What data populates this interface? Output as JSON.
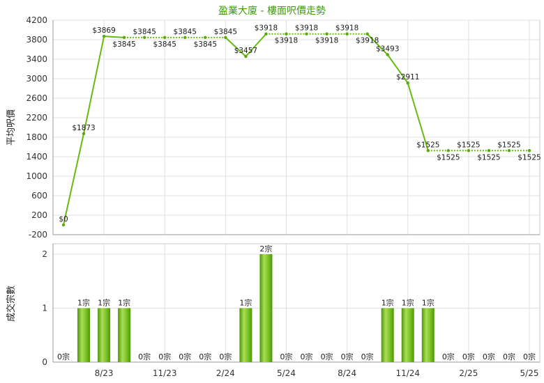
{
  "colors": {
    "title": "#3d9b0a",
    "line": "#66bb0f",
    "marker": "#5aa80a",
    "bar_edge": "#4e9606",
    "bar_light": "#aadd58",
    "bar_mid": "#78c224",
    "grid": "#e0e0e0",
    "frame": "#c8c8c8",
    "axis": "#9a9a9a"
  },
  "chart_data": [
    {
      "type": "line",
      "title": "盈業大廈 - 樓面呎價走勢",
      "ylabel": "平均呎價",
      "ylim": [
        -200,
        4200
      ],
      "yticks": [
        4200,
        3800,
        3400,
        3000,
        2600,
        2200,
        1800,
        1400,
        1000,
        600,
        200,
        -200
      ],
      "grid": true,
      "values": [
        0,
        1873,
        3869,
        3845,
        3845,
        3845,
        3845,
        3845,
        3845,
        3457,
        3918,
        3918,
        3918,
        3918,
        3918,
        3918,
        3493,
        2911,
        1525,
        1525,
        1525,
        1525,
        1525,
        1525
      ],
      "data_labels": [
        "$0",
        "$1873",
        "$3869",
        "$3845",
        "$3845",
        "$3845",
        "$3845",
        "$3845",
        "$3845",
        "$3457",
        "$3918",
        "$3918",
        "$3918",
        "$3918",
        "$3918",
        "$3918",
        "$3493",
        "$2911",
        "$1525",
        "$1525",
        "$1525",
        "$1525",
        "$1525",
        "$1525"
      ]
    },
    {
      "type": "bar",
      "ylabel": "成交宗數",
      "ylim": [
        0,
        2
      ],
      "yticks": [
        2,
        1,
        0
      ],
      "grid": true,
      "categories": [
        "",
        "",
        "8/23",
        "",
        "",
        "11/23",
        "",
        "",
        "2/24",
        "",
        "",
        "5/24",
        "",
        "",
        "8/24",
        "",
        "",
        "11/24",
        "",
        "",
        "2/25",
        "",
        "",
        "5/25"
      ],
      "values": [
        0,
        1,
        1,
        1,
        0,
        0,
        0,
        0,
        0,
        1,
        2,
        0,
        0,
        0,
        0,
        0,
        1,
        1,
        1,
        0,
        0,
        0,
        0,
        0
      ],
      "data_labels": [
        "0宗",
        "1宗",
        "1宗",
        "1宗",
        "0宗",
        "0宗",
        "0宗",
        "0宗",
        "0宗",
        "1宗",
        "2宗",
        "0宗",
        "0宗",
        "0宗",
        "0宗",
        "0宗",
        "1宗",
        "1宗",
        "1宗",
        "0宗",
        "0宗",
        "0宗",
        "0宗",
        "0宗"
      ]
    }
  ]
}
